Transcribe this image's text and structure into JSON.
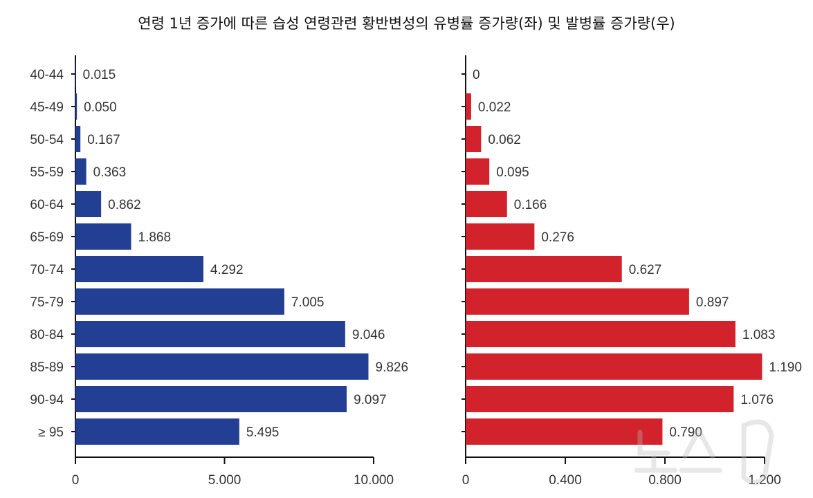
{
  "chart_data": [
    {
      "type": "bar",
      "orientation": "horizontal",
      "title": "연령 1년 증가에 따른 습성 연령관련 황반변성의 유병률 증가량(좌) 및 발병률 증가량(우)",
      "categories": [
        "40-44",
        "45-49",
        "50-54",
        "55-59",
        "60-64",
        "65-69",
        "70-74",
        "75-79",
        "80-84",
        "85-89",
        "90-94",
        "≥ 95"
      ],
      "values": [
        0.015,
        0.05,
        0.167,
        0.363,
        0.862,
        1.868,
        4.292,
        7.005,
        9.046,
        9.826,
        9.097,
        5.495
      ],
      "value_labels": [
        "0.015",
        "0.050",
        "0.167",
        "0.363",
        "0.862",
        "1.868",
        "4.292",
        "7.005",
        "9.046",
        "9.826",
        "9.097",
        "5.495"
      ],
      "xlim": [
        0,
        10
      ],
      "xticks": [
        0,
        5,
        10
      ],
      "xtick_labels": [
        "0",
        "5.000",
        "10.000"
      ],
      "color": "#233f94",
      "grid": false
    },
    {
      "type": "bar",
      "orientation": "horizontal",
      "categories": [
        "40-44",
        "45-49",
        "50-54",
        "55-59",
        "60-64",
        "65-69",
        "70-74",
        "75-79",
        "80-84",
        "85-89",
        "90-94",
        "≥ 95"
      ],
      "values": [
        0,
        0.022,
        0.062,
        0.095,
        0.166,
        0.276,
        0.627,
        0.897,
        1.083,
        1.19,
        1.076,
        0.79
      ],
      "value_labels": [
        "0",
        "0.022",
        "0.062",
        "0.095",
        "0.166",
        "0.276",
        "0.627",
        "0.897",
        "1.083",
        "1.190",
        "1.076",
        "0.790"
      ],
      "xlim": [
        0,
        1.2
      ],
      "xticks": [
        0,
        0.4,
        0.8,
        1.2
      ],
      "xtick_labels": [
        "0",
        "0.400",
        "0.800",
        "1.200"
      ],
      "color": "#d2222c",
      "grid": false
    }
  ],
  "watermark": "뉴스1"
}
